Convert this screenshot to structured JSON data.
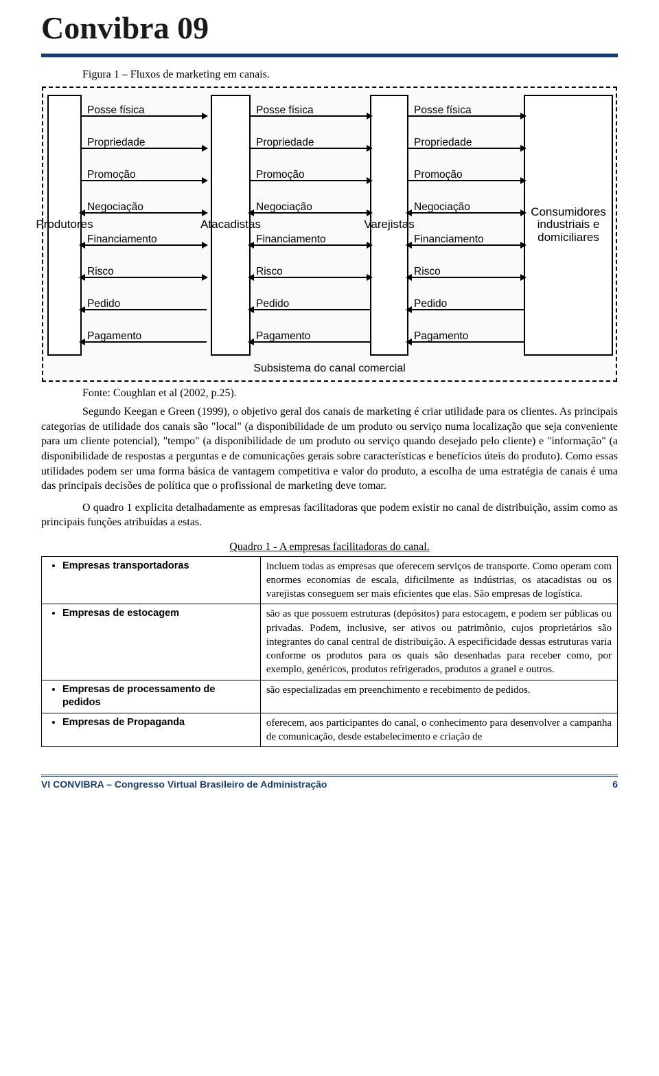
{
  "header": {
    "title": "Convibra 09"
  },
  "figure": {
    "caption": "Figura 1 – Fluxos de marketing em canais.",
    "source": "Fonte: Coughlan et al (2002, p.25).",
    "subsystem_label": "Subsistema do canal comercial",
    "actors": {
      "produtores": "Produtores",
      "atacadistas": "Atacadistas",
      "varejistas": "Varejistas",
      "consumidores": "Consumidores industriais e domiciliares"
    },
    "flows": [
      {
        "label": "Posse física",
        "dir": "right"
      },
      {
        "label": "Propriedade",
        "dir": "right"
      },
      {
        "label": "Promoção",
        "dir": "right"
      },
      {
        "label": "Negociação",
        "dir": "both"
      },
      {
        "label": "Financiamento",
        "dir": "both"
      },
      {
        "label": "Risco",
        "dir": "both"
      },
      {
        "label": "Pedido",
        "dir": "left"
      },
      {
        "label": "Pagamento",
        "dir": "left"
      }
    ],
    "style": {
      "border_color": "#000000",
      "background": "#fafafa",
      "dashed": true,
      "font_family": "Arial",
      "flow_fontsize": 15.5
    }
  },
  "body": {
    "p1": "Segundo Keegan e Green (1999), o objetivo geral dos canais de marketing é criar utilidade para os clientes. As principais categorias de utilidade dos canais são \"local\" (a disponibilidade de um produto ou serviço numa localização que seja conveniente para um cliente potencial), \"tempo\" (a disponibilidade de um produto ou serviço quando desejado pelo cliente) e \"informação\" (a disponibilidade de respostas a perguntas e de comunicações gerais sobre características e benefícios úteis do produto). Como essas utilidades podem ser uma forma básica de vantagem competitiva e valor do produto, a escolha de uma estratégia de canais é uma das principais decisões de política que o profissional de marketing deve tomar.",
    "p2": "O quadro 1 explicita detalhadamente as empresas facilitadoras que podem existir no canal de distribuição, assim como as principais funções atribuídas a estas."
  },
  "table": {
    "caption": "Quadro 1 - A empresas facilitadoras do canal.",
    "rows": [
      {
        "name": "Empresas transportadoras",
        "desc": "incluem todas as empresas que oferecem serviços de transporte. Como operam com enormes economias de escala, dificilmente as indústrias, os atacadistas ou os varejistas conseguem ser mais eficientes que elas. São empresas de logística."
      },
      {
        "name": "Empresas de estocagem",
        "desc": "são as que possuem estruturas (depósitos) para estocagem, e podem ser públicas ou privadas. Podem, inclusive, ser ativos ou patrimônio, cujos proprietários são integrantes do canal central de distribuição. A especificidade dessas estruturas varia conforme os produtos para os quais são desenhadas para receber como, por exemplo, genéricos, produtos refrigerados, produtos a granel e outros."
      },
      {
        "name": "Empresas de processamento de pedidos",
        "desc": "são especializadas em preenchimento e recebimento de pedidos."
      },
      {
        "name": "Empresas de Propaganda",
        "desc": "oferecem, aos participantes do canal, o conhecimento para desenvolver a campanha de comunicação, desde estabelecimento e criação de"
      }
    ]
  },
  "footer": {
    "text": "VI CONVIBRA – Congresso Virtual Brasileiro de Administração",
    "page": "6"
  }
}
